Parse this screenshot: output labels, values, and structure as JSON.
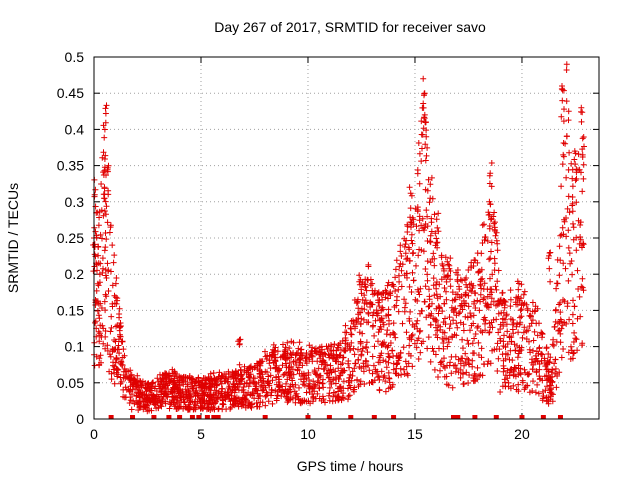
{
  "chart_data": {
    "type": "scatter",
    "title": "Day 267 of 2017, SRMTID for receiver savo",
    "xlabel": "GPS time / hours",
    "ylabel": "SRMTID / TECUs",
    "xlim": [
      0,
      23.6
    ],
    "ylim": [
      0,
      0.5
    ],
    "xticks": [
      0,
      5,
      10,
      15,
      20
    ],
    "xtick_labels": [
      "0",
      "5",
      "10",
      "15",
      "20"
    ],
    "yticks": [
      0,
      0.05,
      0.1,
      0.15,
      0.2,
      0.25,
      0.3,
      0.35,
      0.4,
      0.45,
      0.5
    ],
    "ytick_labels": [
      "0",
      "0.05",
      "0.1",
      "0.15",
      "0.2",
      "0.25",
      "0.3",
      "0.35",
      "0.4",
      "0.45",
      "0.5"
    ],
    "grid": true,
    "marker": "plus",
    "color": "#e00000",
    "profile": [
      [
        0.0,
        0.2
      ],
      [
        0.2,
        0.15
      ],
      [
        0.4,
        0.25
      ],
      [
        0.55,
        0.28
      ],
      [
        0.7,
        0.18
      ],
      [
        0.9,
        0.14
      ],
      [
        1.1,
        0.1
      ],
      [
        1.4,
        0.06
      ],
      [
        1.8,
        0.035
      ],
      [
        2.5,
        0.03
      ],
      [
        3.5,
        0.04
      ],
      [
        4.5,
        0.035
      ],
      [
        5.5,
        0.035
      ],
      [
        6.5,
        0.04
      ],
      [
        7.5,
        0.045
      ],
      [
        8.5,
        0.06
      ],
      [
        9.5,
        0.06
      ],
      [
        10.5,
        0.06
      ],
      [
        11.5,
        0.065
      ],
      [
        12.0,
        0.08
      ],
      [
        12.5,
        0.12
      ],
      [
        13.0,
        0.12
      ],
      [
        13.5,
        0.1
      ],
      [
        14.0,
        0.12
      ],
      [
        14.5,
        0.16
      ],
      [
        15.0,
        0.18
      ],
      [
        15.4,
        0.3
      ],
      [
        15.7,
        0.2
      ],
      [
        16.2,
        0.15
      ],
      [
        16.8,
        0.12
      ],
      [
        17.3,
        0.12
      ],
      [
        17.8,
        0.14
      ],
      [
        18.3,
        0.16
      ],
      [
        18.6,
        0.22
      ],
      [
        19.0,
        0.1
      ],
      [
        19.5,
        0.1
      ],
      [
        20.0,
        0.11
      ],
      [
        20.5,
        0.1
      ],
      [
        21.0,
        0.07
      ],
      [
        21.4,
        0.05
      ],
      [
        21.8,
        0.18
      ],
      [
        22.0,
        0.3
      ],
      [
        22.3,
        0.22
      ],
      [
        22.6,
        0.22
      ],
      [
        22.9,
        0.25
      ]
    ],
    "peaks": [
      {
        "x": 0.0,
        "y": 0.25
      },
      {
        "x": 0.5,
        "y": 0.32
      },
      {
        "x": 6.8,
        "y": 0.11
      },
      {
        "x": 14.8,
        "y": 0.32
      },
      {
        "x": 15.4,
        "y": 0.45
      },
      {
        "x": 15.5,
        "y": 0.42
      },
      {
        "x": 18.5,
        "y": 0.3
      },
      {
        "x": 21.3,
        "y": 0.23
      },
      {
        "x": 21.9,
        "y": 0.46
      },
      {
        "x": 22.5,
        "y": 0.37
      },
      {
        "x": 22.8,
        "y": 0.43
      }
    ],
    "zero_markers": [
      0.8,
      1.8,
      2.8,
      3.5,
      4.0,
      4.6,
      4.9,
      5.3,
      5.6,
      5.8,
      8.0,
      10.0,
      11.0,
      12.0,
      13.1,
      14.0,
      16.8,
      17.0,
      17.8,
      18.8,
      20.0,
      21.0,
      21.8
    ],
    "point_count": 2600,
    "random_seed": 267
  }
}
